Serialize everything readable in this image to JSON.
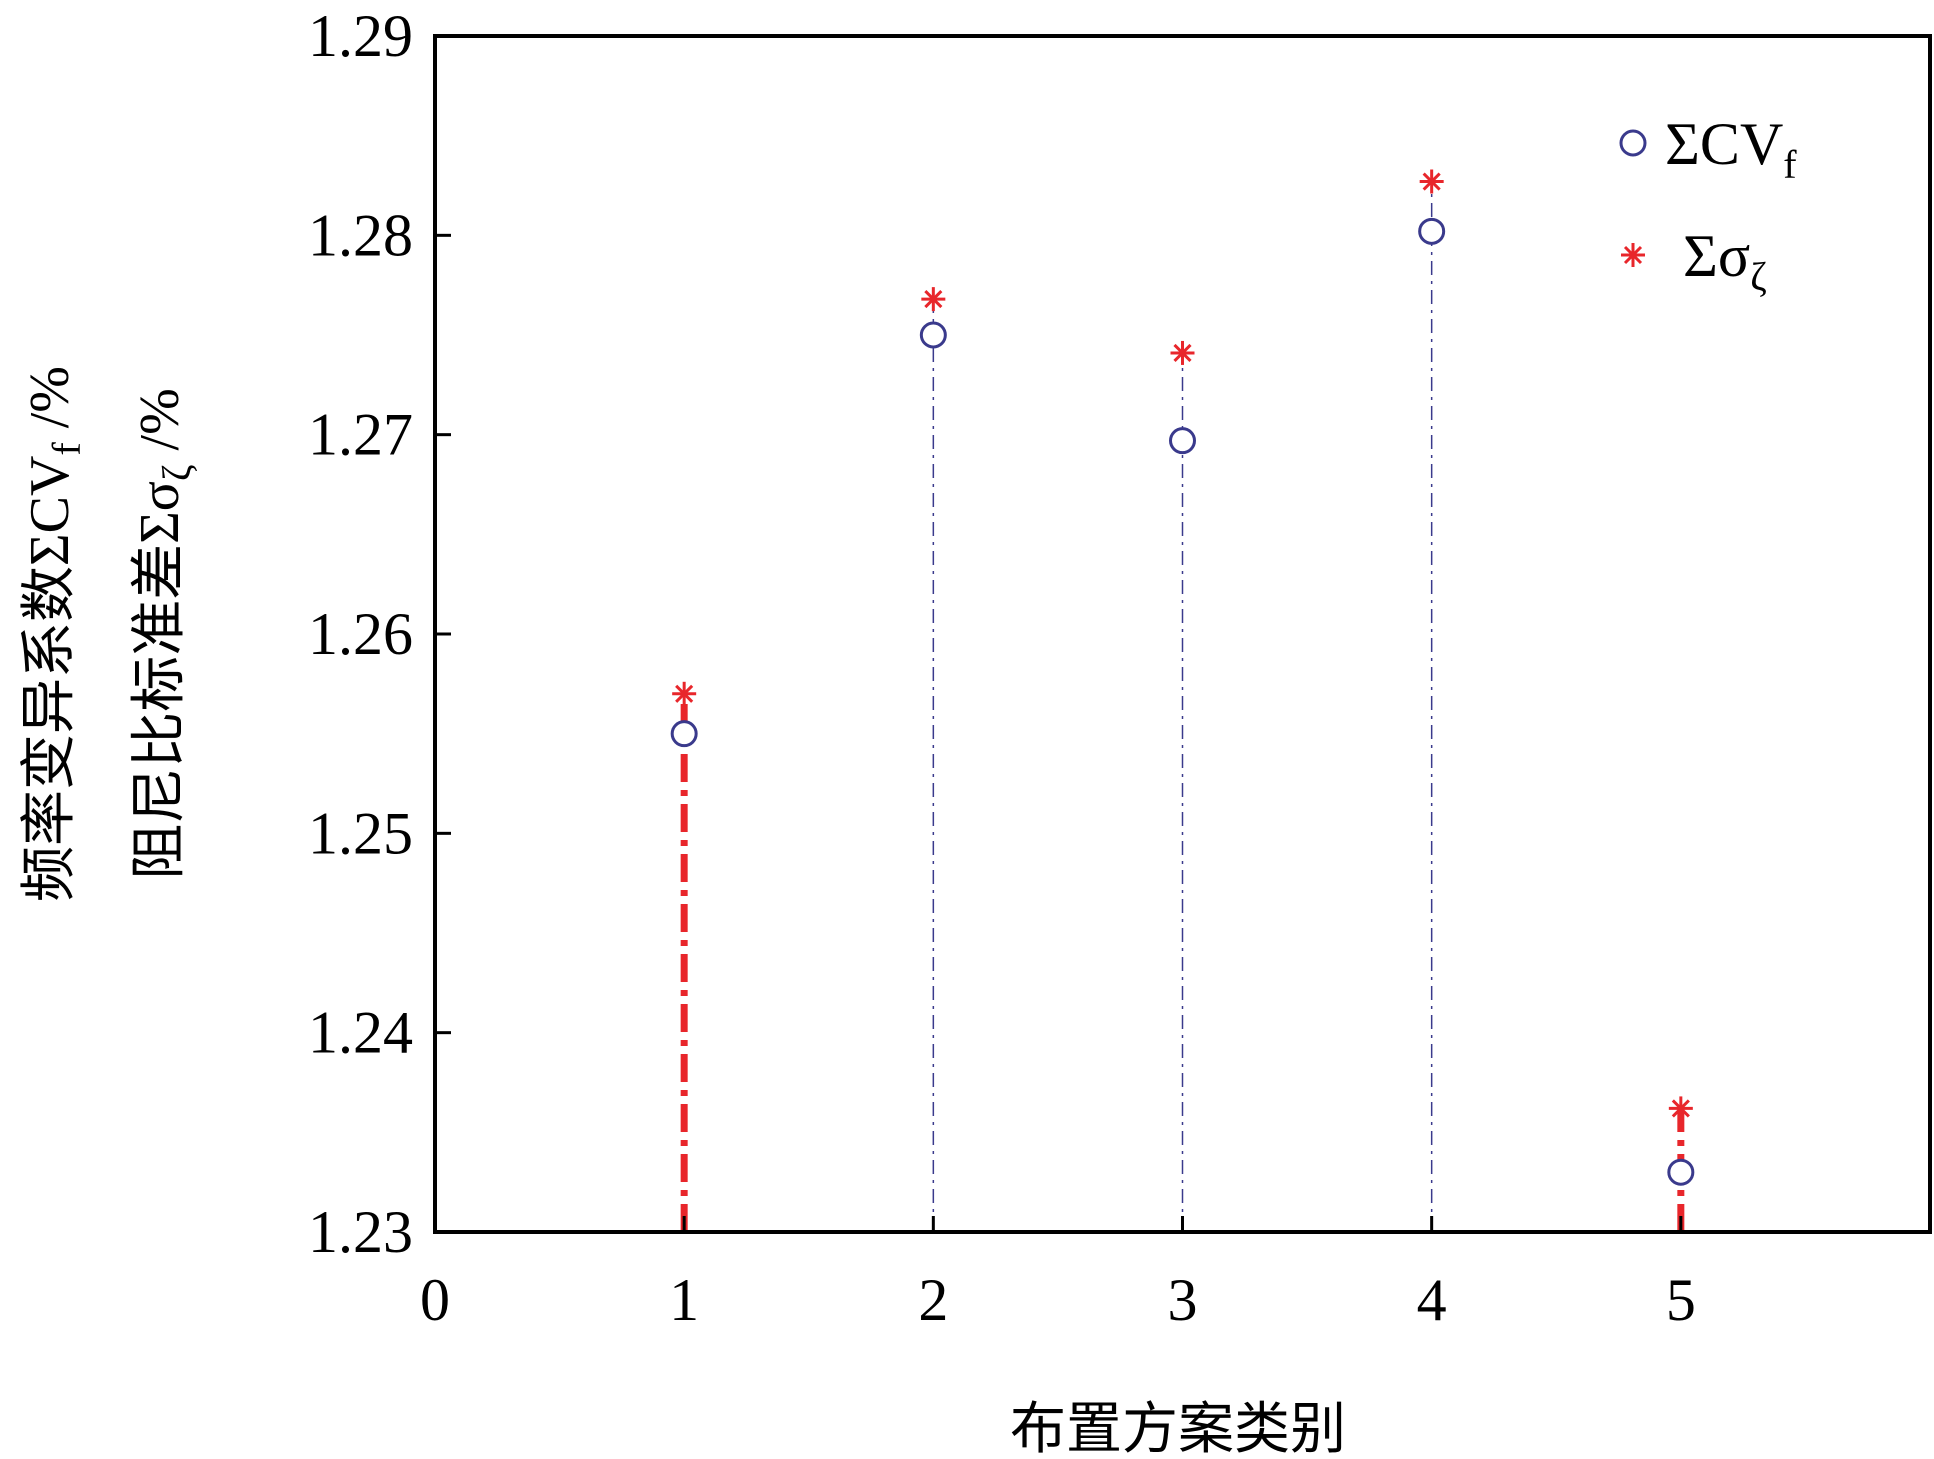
{
  "chart_data": {
    "type": "scatter",
    "xlabel": "布置方案类别",
    "ylabel_line1": {
      "prefix": "频率变异系数ΣCV",
      "sub": "f",
      "suffix": " /%"
    },
    "ylabel_line2": {
      "prefix": "阻尼比标准差Σσ",
      "sub": "ζ",
      "suffix": " /%"
    },
    "xlim": [
      0,
      6
    ],
    "ylim": [
      1.23,
      1.29
    ],
    "x_ticks": [
      "0",
      "1",
      "2",
      "3",
      "4",
      "5"
    ],
    "y_ticks": [
      "1.23",
      "1.24",
      "1.25",
      "1.26",
      "1.27",
      "1.28",
      "1.29"
    ],
    "x": [
      1,
      2,
      3,
      4,
      5
    ],
    "series": [
      {
        "name_main": "ΣCV",
        "name_sub": "f",
        "marker": "circle",
        "color": "#3a3a8c",
        "values": [
          1.255,
          1.275,
          1.2697,
          1.2802,
          1.233
        ]
      },
      {
        "name_main": "Σσ",
        "name_sub": "ζ",
        "marker": "asterisk",
        "color": "#e8262b",
        "values": [
          1.257,
          1.2768,
          1.2741,
          1.2827,
          1.2362
        ]
      }
    ],
    "stems": {
      "blue_dashdot_at": [
        2,
        3,
        4
      ],
      "red_thick_at": [
        1,
        5
      ],
      "blue_color": "#3a3a8c",
      "red_color": "#e8262b"
    },
    "legend_position": "top-right",
    "grid": false
  }
}
